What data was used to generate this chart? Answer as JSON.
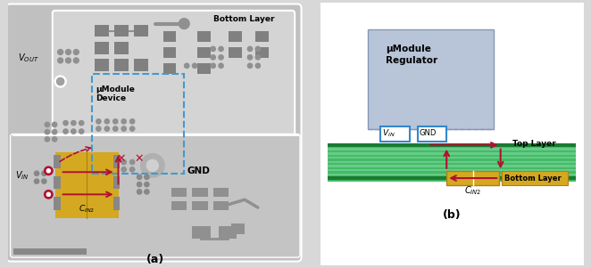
{
  "bg_color": "#c8c8c8",
  "pcb_white": "#e8e8e8",
  "gray_dark": "#888888",
  "gray_med": "#a0a0a0",
  "gold_color": "#d4a820",
  "red_color": "#b01030",
  "blue_dashed": "#4499cc",
  "green_bg": "#33aa55",
  "green_stripe": "#22883a",
  "green_light_stripe": "#55cc77",
  "reg_box_color": "#b8c4d8",
  "reg_box_edge": "#8898b8",
  "label_a": "(a)",
  "label_b": "(b)",
  "text_bottom_layer": "Bottom Layer",
  "text_umodule_device": "μModule\nDevice",
  "text_umodule_reg": "μModule\nRegulator",
  "text_top_layer": "Top Layer",
  "text_bottom_layer_b": "Bottom Layer",
  "text_vout": "$V_{OUT}$",
  "text_vin": "$V_{IN}$",
  "text_gnd": "GND"
}
